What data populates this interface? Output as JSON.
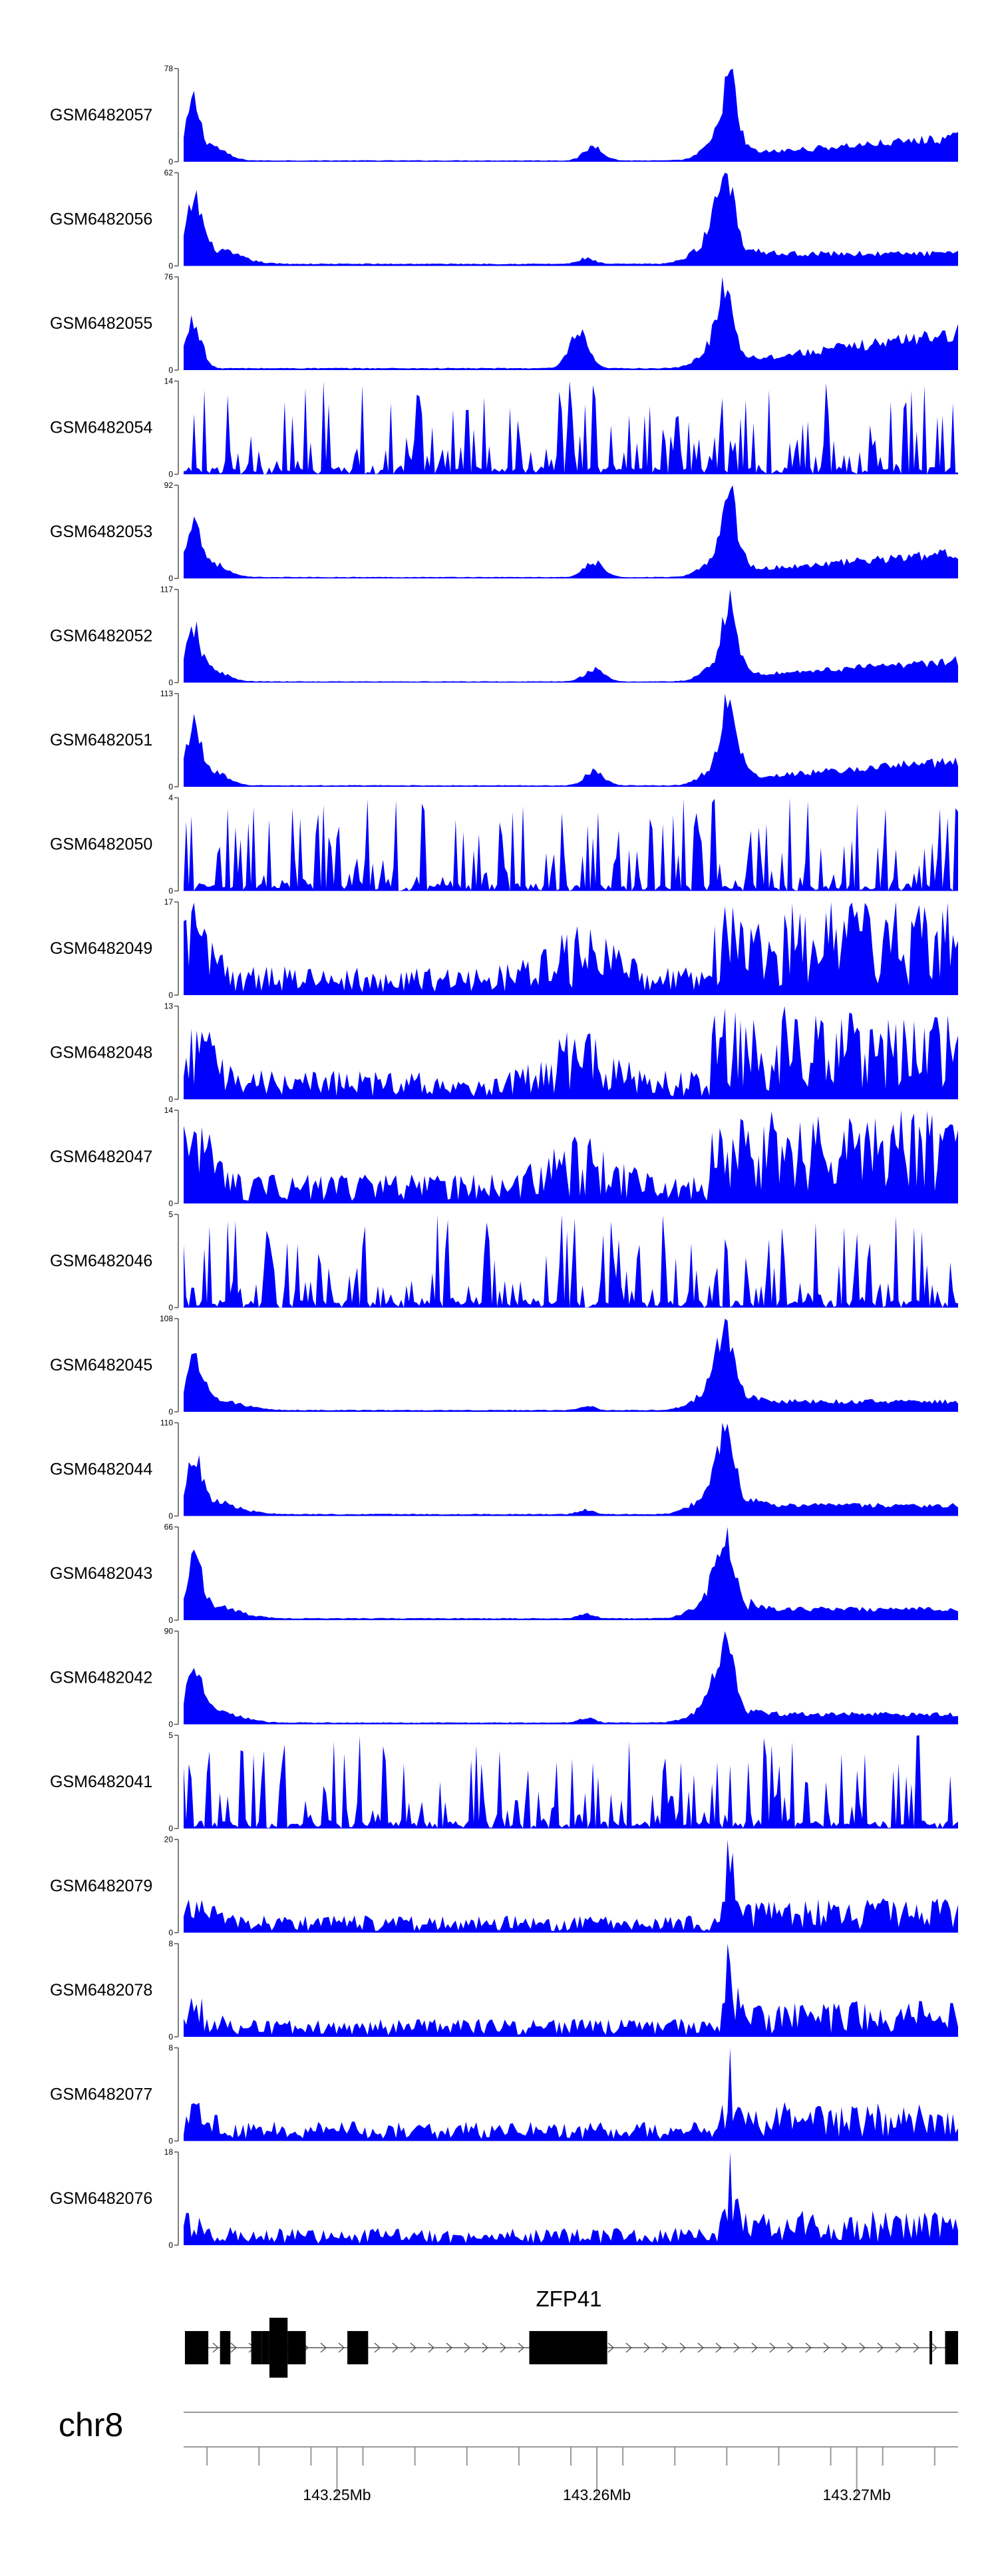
{
  "chart_data": {
    "type": "area",
    "fill_color": "#0000ff",
    "x_range_mb": [
      143.2441,
      143.2739
    ],
    "tracks": [
      {
        "name": "GSM6482057",
        "ymax": 78,
        "profile": "a"
      },
      {
        "name": "GSM6482056",
        "ymax": 62,
        "profile": "b"
      },
      {
        "name": "GSM6482055",
        "ymax": 76,
        "profile": "c"
      },
      {
        "name": "GSM6482054",
        "ymax": 14,
        "profile": "noise"
      },
      {
        "name": "GSM6482053",
        "ymax": 92,
        "profile": "a"
      },
      {
        "name": "GSM6482052",
        "ymax": 117,
        "profile": "a"
      },
      {
        "name": "GSM6482051",
        "ymax": 113,
        "profile": "a"
      },
      {
        "name": "GSM6482050",
        "ymax": 4,
        "profile": "noise"
      },
      {
        "name": "GSM6482049",
        "ymax": 17,
        "profile": "low"
      },
      {
        "name": "GSM6482048",
        "ymax": 13,
        "profile": "low"
      },
      {
        "name": "GSM6482047",
        "ymax": 14,
        "profile": "low"
      },
      {
        "name": "GSM6482046",
        "ymax": 5,
        "profile": "noise"
      },
      {
        "name": "GSM6482045",
        "ymax": 108,
        "profile": "b"
      },
      {
        "name": "GSM6482044",
        "ymax": 110,
        "profile": "b"
      },
      {
        "name": "GSM6482043",
        "ymax": 66,
        "profile": "b"
      },
      {
        "name": "GSM6482042",
        "ymax": 90,
        "profile": "b"
      },
      {
        "name": "GSM6482041",
        "ymax": 5,
        "profile": "noise"
      },
      {
        "name": "GSM6482079",
        "ymax": 20,
        "profile": "mid"
      },
      {
        "name": "GSM6482078",
        "ymax": 8,
        "profile": "mid"
      },
      {
        "name": "GSM6482077",
        "ymax": 8,
        "profile": "mid"
      },
      {
        "name": "GSM6482076",
        "ymax": 18,
        "profile": "mid"
      }
    ],
    "gene": {
      "name": "ZFP41",
      "exons_mb": [
        [
          143.24415,
          143.24505
        ],
        [
          143.2455,
          143.2459
        ],
        [
          143.2467,
          143.2471
        ],
        [
          143.2471,
          143.2474
        ],
        [
          143.2474,
          143.2481
        ],
        [
          143.2481,
          143.2488
        ],
        [
          143.2504,
          143.2512
        ],
        [
          143.2574,
          143.2604
        ],
        [
          143.2728,
          143.2729
        ],
        [
          143.2734,
          143.2739
        ]
      ],
      "tall_exon_mb": [
        143.2474,
        143.2481
      ]
    },
    "chromosome": "chr8",
    "ticks_mb": [
      143.245,
      143.247,
      143.249,
      143.251,
      143.253,
      143.255,
      143.257,
      143.259,
      143.261,
      143.263,
      143.265,
      143.267,
      143.269,
      143.271,
      143.273
    ],
    "labeled_ticks": [
      {
        "pos": 143.25,
        "label": "143.25Mb"
      },
      {
        "pos": 143.26,
        "label": "143.26Mb"
      },
      {
        "pos": 143.27,
        "label": "143.27Mb"
      }
    ]
  }
}
